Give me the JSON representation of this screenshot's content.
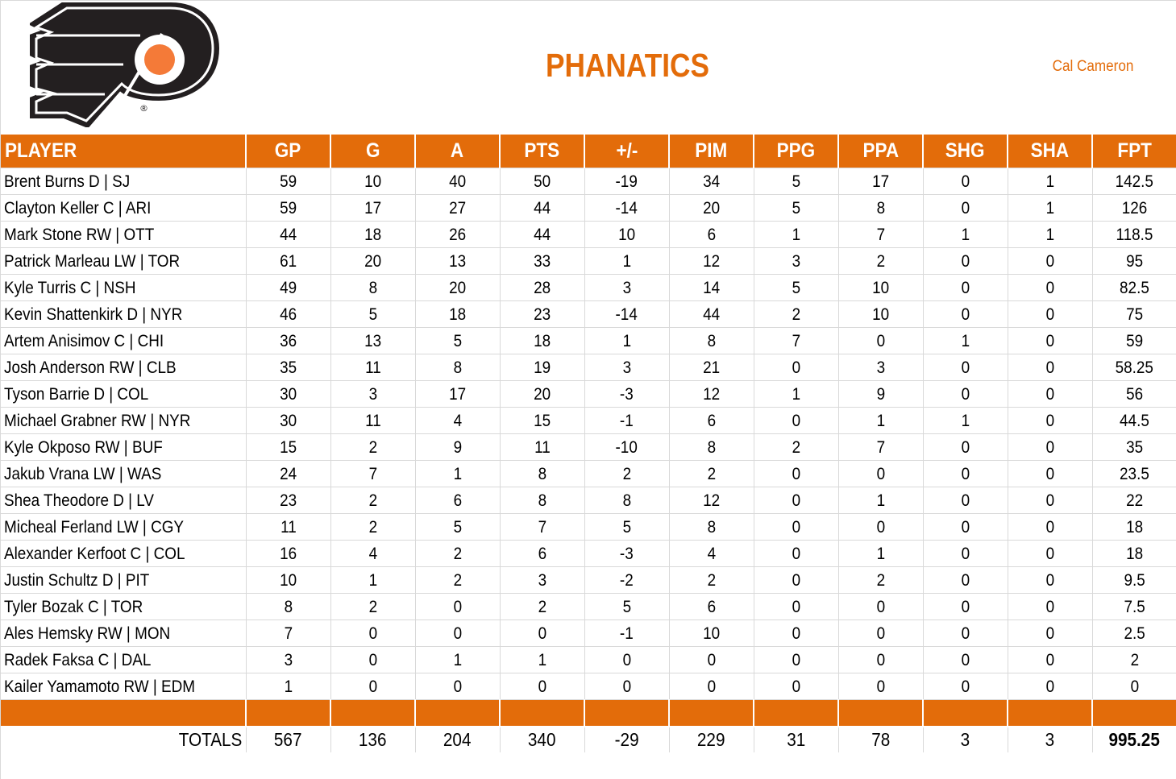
{
  "header": {
    "team_name": "PHANATICS",
    "owner": "Cal Cameron",
    "logo": "philadelphia-flyers-logo-icon"
  },
  "colors": {
    "accent": "#e36c0a",
    "logo_black": "#231f20",
    "logo_orange": "#f47a38",
    "grid": "#d9d9d9"
  },
  "table": {
    "columns": [
      "PLAYER",
      "GP",
      "G",
      "A",
      "PTS",
      "+/-",
      "PIM",
      "PPG",
      "PPA",
      "SHG",
      "SHA",
      "FPT"
    ],
    "rows": [
      {
        "player": "Brent Burns D | SJ",
        "gp": "59",
        "g": "10",
        "a": "40",
        "pts": "50",
        "pm": "-19",
        "pim": "34",
        "ppg": "5",
        "ppa": "17",
        "shg": "0",
        "sha": "1",
        "fpt": "142.5"
      },
      {
        "player": "Clayton Keller C | ARI",
        "gp": "59",
        "g": "17",
        "a": "27",
        "pts": "44",
        "pm": "-14",
        "pim": "20",
        "ppg": "5",
        "ppa": "8",
        "shg": "0",
        "sha": "1",
        "fpt": "126"
      },
      {
        "player": "Mark Stone RW | OTT",
        "gp": "44",
        "g": "18",
        "a": "26",
        "pts": "44",
        "pm": "10",
        "pim": "6",
        "ppg": "1",
        "ppa": "7",
        "shg": "1",
        "sha": "1",
        "fpt": "118.5"
      },
      {
        "player": "Patrick Marleau LW | TOR",
        "gp": "61",
        "g": "20",
        "a": "13",
        "pts": "33",
        "pm": "1",
        "pim": "12",
        "ppg": "3",
        "ppa": "2",
        "shg": "0",
        "sha": "0",
        "fpt": "95"
      },
      {
        "player": "Kyle Turris C | NSH",
        "gp": "49",
        "g": "8",
        "a": "20",
        "pts": "28",
        "pm": "3",
        "pim": "14",
        "ppg": "5",
        "ppa": "10",
        "shg": "0",
        "sha": "0",
        "fpt": "82.5"
      },
      {
        "player": "Kevin Shattenkirk D | NYR",
        "gp": "46",
        "g": "5",
        "a": "18",
        "pts": "23",
        "pm": "-14",
        "pim": "44",
        "ppg": "2",
        "ppa": "10",
        "shg": "0",
        "sha": "0",
        "fpt": "75"
      },
      {
        "player": "Artem Anisimov C | CHI",
        "gp": "36",
        "g": "13",
        "a": "5",
        "pts": "18",
        "pm": "1",
        "pim": "8",
        "ppg": "7",
        "ppa": "0",
        "shg": "1",
        "sha": "0",
        "fpt": "59"
      },
      {
        "player": "Josh Anderson RW | CLB",
        "gp": "35",
        "g": "11",
        "a": "8",
        "pts": "19",
        "pm": "3",
        "pim": "21",
        "ppg": "0",
        "ppa": "3",
        "shg": "0",
        "sha": "0",
        "fpt": "58.25"
      },
      {
        "player": "Tyson Barrie D | COL",
        "gp": "30",
        "g": "3",
        "a": "17",
        "pts": "20",
        "pm": "-3",
        "pim": "12",
        "ppg": "1",
        "ppa": "9",
        "shg": "0",
        "sha": "0",
        "fpt": "56"
      },
      {
        "player": "Michael Grabner RW | NYR",
        "gp": "30",
        "g": "11",
        "a": "4",
        "pts": "15",
        "pm": "-1",
        "pim": "6",
        "ppg": "0",
        "ppa": "1",
        "shg": "1",
        "sha": "0",
        "fpt": "44.5"
      },
      {
        "player": "Kyle Okposo RW | BUF",
        "gp": "15",
        "g": "2",
        "a": "9",
        "pts": "11",
        "pm": "-10",
        "pim": "8",
        "ppg": "2",
        "ppa": "7",
        "shg": "0",
        "sha": "0",
        "fpt": "35"
      },
      {
        "player": "Jakub Vrana LW | WAS",
        "gp": "24",
        "g": "7",
        "a": "1",
        "pts": "8",
        "pm": "2",
        "pim": "2",
        "ppg": "0",
        "ppa": "0",
        "shg": "0",
        "sha": "0",
        "fpt": "23.5"
      },
      {
        "player": "Shea Theodore D | LV",
        "gp": "23",
        "g": "2",
        "a": "6",
        "pts": "8",
        "pm": "8",
        "pim": "12",
        "ppg": "0",
        "ppa": "1",
        "shg": "0",
        "sha": "0",
        "fpt": "22"
      },
      {
        "player": "Micheal Ferland LW | CGY",
        "gp": "11",
        "g": "2",
        "a": "5",
        "pts": "7",
        "pm": "5",
        "pim": "8",
        "ppg": "0",
        "ppa": "0",
        "shg": "0",
        "sha": "0",
        "fpt": "18"
      },
      {
        "player": "Alexander Kerfoot C | COL",
        "gp": "16",
        "g": "4",
        "a": "2",
        "pts": "6",
        "pm": "-3",
        "pim": "4",
        "ppg": "0",
        "ppa": "1",
        "shg": "0",
        "sha": "0",
        "fpt": "18"
      },
      {
        "player": "Justin Schultz D | PIT",
        "gp": "10",
        "g": "1",
        "a": "2",
        "pts": "3",
        "pm": "-2",
        "pim": "2",
        "ppg": "0",
        "ppa": "2",
        "shg": "0",
        "sha": "0",
        "fpt": "9.5"
      },
      {
        "player": "Tyler Bozak C | TOR",
        "gp": "8",
        "g": "2",
        "a": "0",
        "pts": "2",
        "pm": "5",
        "pim": "6",
        "ppg": "0",
        "ppa": "0",
        "shg": "0",
        "sha": "0",
        "fpt": "7.5"
      },
      {
        "player": "Ales Hemsky RW | MON",
        "gp": "7",
        "g": "0",
        "a": "0",
        "pts": "0",
        "pm": "-1",
        "pim": "10",
        "ppg": "0",
        "ppa": "0",
        "shg": "0",
        "sha": "0",
        "fpt": "2.5"
      },
      {
        "player": "Radek Faksa C | DAL",
        "gp": "3",
        "g": "0",
        "a": "1",
        "pts": "1",
        "pm": "0",
        "pim": "0",
        "ppg": "0",
        "ppa": "0",
        "shg": "0",
        "sha": "0",
        "fpt": "2"
      },
      {
        "player": "Kailer Yamamoto RW | EDM",
        "gp": "1",
        "g": "0",
        "a": "0",
        "pts": "0",
        "pm": "0",
        "pim": "0",
        "ppg": "0",
        "ppa": "0",
        "shg": "0",
        "sha": "0",
        "fpt": "0"
      }
    ],
    "totals": {
      "label": "TOTALS",
      "gp": "567",
      "g": "136",
      "a": "204",
      "pts": "340",
      "pm": "-29",
      "pim": "229",
      "ppg": "31",
      "ppa": "78",
      "shg": "3",
      "sha": "3",
      "fpt": "995.25"
    }
  }
}
